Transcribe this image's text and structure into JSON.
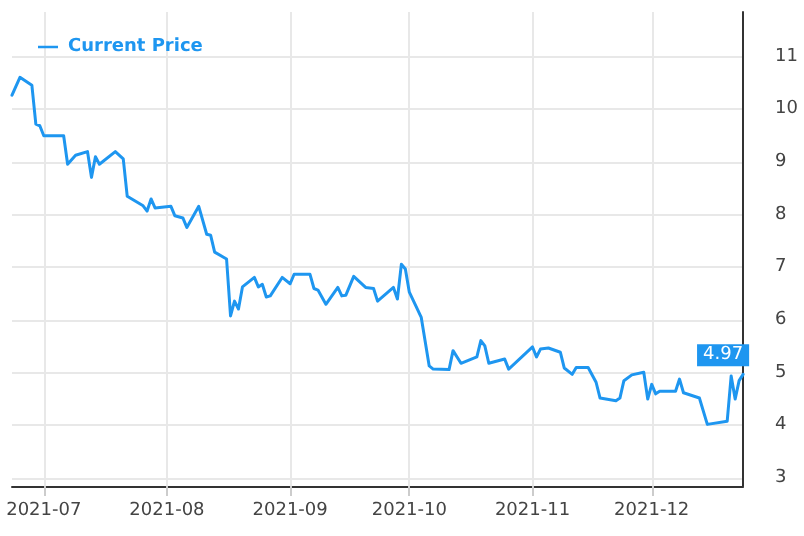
{
  "chart_data": {
    "type": "line",
    "x": [
      "2021-06-23",
      "2021-06-25",
      "2021-06-28",
      "2021-06-29",
      "2021-06-30",
      "2021-07-01",
      "2021-07-06",
      "2021-07-07",
      "2021-07-09",
      "2021-07-12",
      "2021-07-13",
      "2021-07-14",
      "2021-07-15",
      "2021-07-19",
      "2021-07-21",
      "2021-07-22",
      "2021-07-26",
      "2021-07-27",
      "2021-07-28",
      "2021-07-29",
      "2021-08-02",
      "2021-08-03",
      "2021-08-05",
      "2021-08-06",
      "2021-08-09",
      "2021-08-11",
      "2021-08-12",
      "2021-08-13",
      "2021-08-16",
      "2021-08-17",
      "2021-08-18",
      "2021-08-19",
      "2021-08-20",
      "2021-08-23",
      "2021-08-24",
      "2021-08-25",
      "2021-08-26",
      "2021-08-27",
      "2021-08-30",
      "2021-09-01",
      "2021-09-02",
      "2021-09-06",
      "2021-09-07",
      "2021-09-08",
      "2021-09-10",
      "2021-09-13",
      "2021-09-14",
      "2021-09-15",
      "2021-09-17",
      "2021-09-20",
      "2021-09-22",
      "2021-09-23",
      "2021-09-27",
      "2021-09-28",
      "2021-09-29",
      "2021-09-30",
      "2021-10-01",
      "2021-10-04",
      "2021-10-06",
      "2021-10-07",
      "2021-10-11",
      "2021-10-12",
      "2021-10-14",
      "2021-10-18",
      "2021-10-19",
      "2021-10-20",
      "2021-10-21",
      "2021-10-25",
      "2021-10-26",
      "2021-11-01",
      "2021-11-02",
      "2021-11-03",
      "2021-11-05",
      "2021-11-08",
      "2021-11-09",
      "2021-11-11",
      "2021-11-12",
      "2021-11-15",
      "2021-11-17",
      "2021-11-18",
      "2021-11-22",
      "2021-11-23",
      "2021-11-24",
      "2021-11-26",
      "2021-11-29",
      "2021-11-30",
      "2021-12-01",
      "2021-12-02",
      "2021-12-03",
      "2021-12-07",
      "2021-12-08",
      "2021-12-09",
      "2021-12-13",
      "2021-12-15",
      "2021-12-20",
      "2021-12-21",
      "2021-12-22",
      "2021-12-23",
      "2021-12-24"
    ],
    "series": [
      {
        "name": "Current Price",
        "color": "#1e96f0",
        "values": [
          10.27,
          10.61,
          10.46,
          9.72,
          9.69,
          9.5,
          9.5,
          8.96,
          9.13,
          9.2,
          8.71,
          9.1,
          8.96,
          9.2,
          9.06,
          8.35,
          8.17,
          8.07,
          8.3,
          8.13,
          8.16,
          7.98,
          7.94,
          7.76,
          8.16,
          7.63,
          7.61,
          7.29,
          7.16,
          6.08,
          6.36,
          6.21,
          6.63,
          6.81,
          6.63,
          6.68,
          6.44,
          6.46,
          6.81,
          6.69,
          6.87,
          6.87,
          6.6,
          6.57,
          6.3,
          6.62,
          6.46,
          6.47,
          6.83,
          6.62,
          6.6,
          6.36,
          6.62,
          6.4,
          7.06,
          6.97,
          6.53,
          6.05,
          5.13,
          5.07,
          5.06,
          5.42,
          5.18,
          5.3,
          5.61,
          5.51,
          5.18,
          5.26,
          5.07,
          5.49,
          5.3,
          5.45,
          5.47,
          5.39,
          5.09,
          4.97,
          5.1,
          5.1,
          4.82,
          4.52,
          4.47,
          4.52,
          4.85,
          4.96,
          5.01,
          4.5,
          4.78,
          4.6,
          4.65,
          4.65,
          4.88,
          4.62,
          4.52,
          4.02,
          4.08,
          4.94,
          4.5,
          4.85,
          4.97
        ]
      }
    ],
    "xlim": [
      "2021-06-23",
      "2021-12-24"
    ],
    "xticks": [
      {
        "value": "2021-07-01",
        "label": "2021-07"
      },
      {
        "value": "2021-08-01",
        "label": "2021-08"
      },
      {
        "value": "2021-09-01",
        "label": "2021-09"
      },
      {
        "value": "2021-10-01",
        "label": "2021-10"
      },
      {
        "value": "2021-11-01",
        "label": "2021-11"
      },
      {
        "value": "2021-12-01",
        "label": "2021-12"
      }
    ],
    "ylim": [
      2.85,
      11.85
    ],
    "yticks": [
      3,
      4,
      5,
      6,
      7,
      8,
      9,
      10,
      11
    ],
    "annotations": [
      {
        "text": "4.97",
        "x": "2021-12-24",
        "y": 4.97
      }
    ],
    "grid": true,
    "legend": "top left",
    "marker": "none",
    "line_style": "solid"
  }
}
